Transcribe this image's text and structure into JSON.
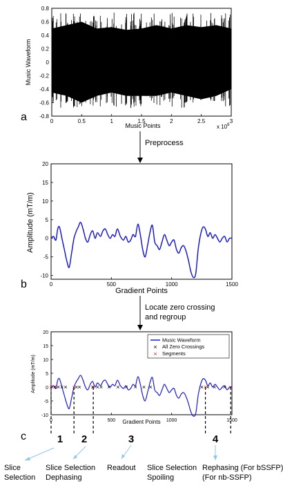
{
  "panel_labels": [
    "a",
    "b",
    "c"
  ],
  "steps": {
    "preprocess": "Preprocess",
    "locate_line1": "Locate zero crossing",
    "locate_line2": "and regroup"
  },
  "segment_numbers": [
    "1",
    "2",
    "3",
    "4"
  ],
  "annotations": [
    {
      "line1": "Slice",
      "line2": "Selection"
    },
    {
      "line1": "Slice Selection",
      "line2": "Dephasing"
    },
    {
      "line1": "Readout",
      "line2": ""
    },
    {
      "line1": "Slice Selection",
      "line2": "Spoiling"
    },
    {
      "line1": "Rephasing (For bSSFP)",
      "line2": "(For nb-SSFP)"
    }
  ],
  "colors": {
    "waveform_a": "#000000",
    "waveform_blue": "#1a1acc",
    "zero_cross": "#000000",
    "segment": "#e02020",
    "callout": "#8fc6e8"
  },
  "chart_data": [
    {
      "type": "area",
      "xlabel": "Music Points",
      "ylabel": "Music Waveform",
      "xlim": [
        0,
        3
      ],
      "ylim": [
        -0.8,
        0.8
      ],
      "x_ticks": [
        "0",
        "0.5",
        "1",
        "1.5",
        "2",
        "2.5",
        "3"
      ],
      "y_ticks": [
        "-0.8",
        "-0.6",
        "-0.4",
        "-0.2",
        "0",
        "0.2",
        "0.4",
        "0.6",
        "0.8"
      ],
      "x_multiplier": {
        "base": "x 10",
        "exp": "6"
      },
      "envelope": {
        "x": [
          0,
          0.25,
          0.5,
          0.75,
          1.0,
          1.25,
          1.5,
          1.75,
          2.0,
          2.25,
          2.5,
          2.75,
          3.0
        ],
        "upper": [
          0.5,
          0.55,
          0.6,
          0.5,
          0.52,
          0.48,
          0.5,
          0.55,
          0.5,
          0.55,
          0.52,
          0.55,
          0.5
        ],
        "lower": [
          -0.45,
          -0.5,
          -0.6,
          -0.5,
          -0.45,
          -0.5,
          -0.5,
          -0.5,
          -0.45,
          -0.5,
          -0.55,
          -0.5,
          -0.4
        ]
      }
    },
    {
      "type": "line",
      "xlabel": "Gradient Points",
      "ylabel": "Amplitude (mT/m)",
      "xlim": [
        0,
        1500
      ],
      "ylim": [
        -11,
        20
      ],
      "x_ticks": [
        "0",
        "500",
        "1000",
        "1500"
      ],
      "y_ticks": [
        "-10",
        "-5",
        "0",
        "5",
        "10",
        "15",
        "20"
      ],
      "series": [
        {
          "x": [
            0,
            20,
            40,
            55,
            70,
            90,
            110,
            130,
            150,
            170,
            190,
            210,
            225,
            245,
            265,
            285,
            305,
            325,
            345,
            365,
            385,
            410,
            430,
            450,
            470,
            490,
            510,
            530,
            550,
            575,
            600,
            620,
            640,
            660,
            680,
            700,
            720,
            740,
            760,
            780,
            800,
            820,
            840,
            860,
            880,
            900,
            920,
            940,
            960,
            980,
            1000,
            1020,
            1040,
            1060,
            1080,
            1100,
            1120,
            1140,
            1160,
            1180,
            1200,
            1220,
            1240,
            1260,
            1280,
            1300,
            1320,
            1340,
            1360,
            1380,
            1400,
            1420,
            1440,
            1460,
            1480,
            1500
          ],
          "values": [
            0,
            0.5,
            -0.5,
            2.5,
            3,
            0,
            -3,
            -6,
            -7.8,
            -4,
            0,
            2,
            3,
            4.3,
            2.5,
            0,
            -1,
            1,
            2,
            0,
            1.5,
            0.5,
            2,
            2.5,
            1,
            0,
            1,
            0.5,
            2.5,
            0.5,
            -0.5,
            0.5,
            -1,
            -0.5,
            1,
            0.5,
            3.8,
            1,
            -3,
            -5,
            -2,
            1.5,
            3.5,
            -1,
            -2,
            -3,
            -1,
            1,
            -0.5,
            -2,
            -1,
            -0.5,
            -3,
            -4,
            -2.5,
            -2,
            -3.5,
            -6,
            -9,
            -10.5,
            -9.5,
            -3,
            1,
            3,
            2.5,
            0.5,
            1.5,
            0,
            1,
            0,
            -1,
            0,
            0.5,
            -1,
            0,
            0
          ]
        }
      ]
    },
    {
      "type": "line",
      "xlabel": "Gradient Points",
      "ylabel": "Amplitude (mT/m)",
      "xlim": [
        0,
        1500
      ],
      "ylim": [
        -10,
        20
      ],
      "x_ticks": [
        "0",
        "500",
        "1000",
        "1500"
      ],
      "y_ticks": [
        "-10",
        "-5",
        "0",
        "5",
        "10",
        "15",
        "20"
      ],
      "legend": {
        "position": "top-right"
      },
      "series": [
        {
          "name": "Music Waveform",
          "marker": "line"
        },
        {
          "name": "All Zero Crossings",
          "marker": "x",
          "x": [
            30,
            60,
            90,
            120,
            210,
            235,
            345,
            385,
            415,
            480,
            555,
            625,
            700,
            770,
            825,
            1250,
            1300,
            1355,
            1440
          ]
        },
        {
          "name": "Segments",
          "marker": "x",
          "x": [
            0,
            40,
            190,
            350,
            1280,
            1490
          ]
        }
      ]
    }
  ]
}
